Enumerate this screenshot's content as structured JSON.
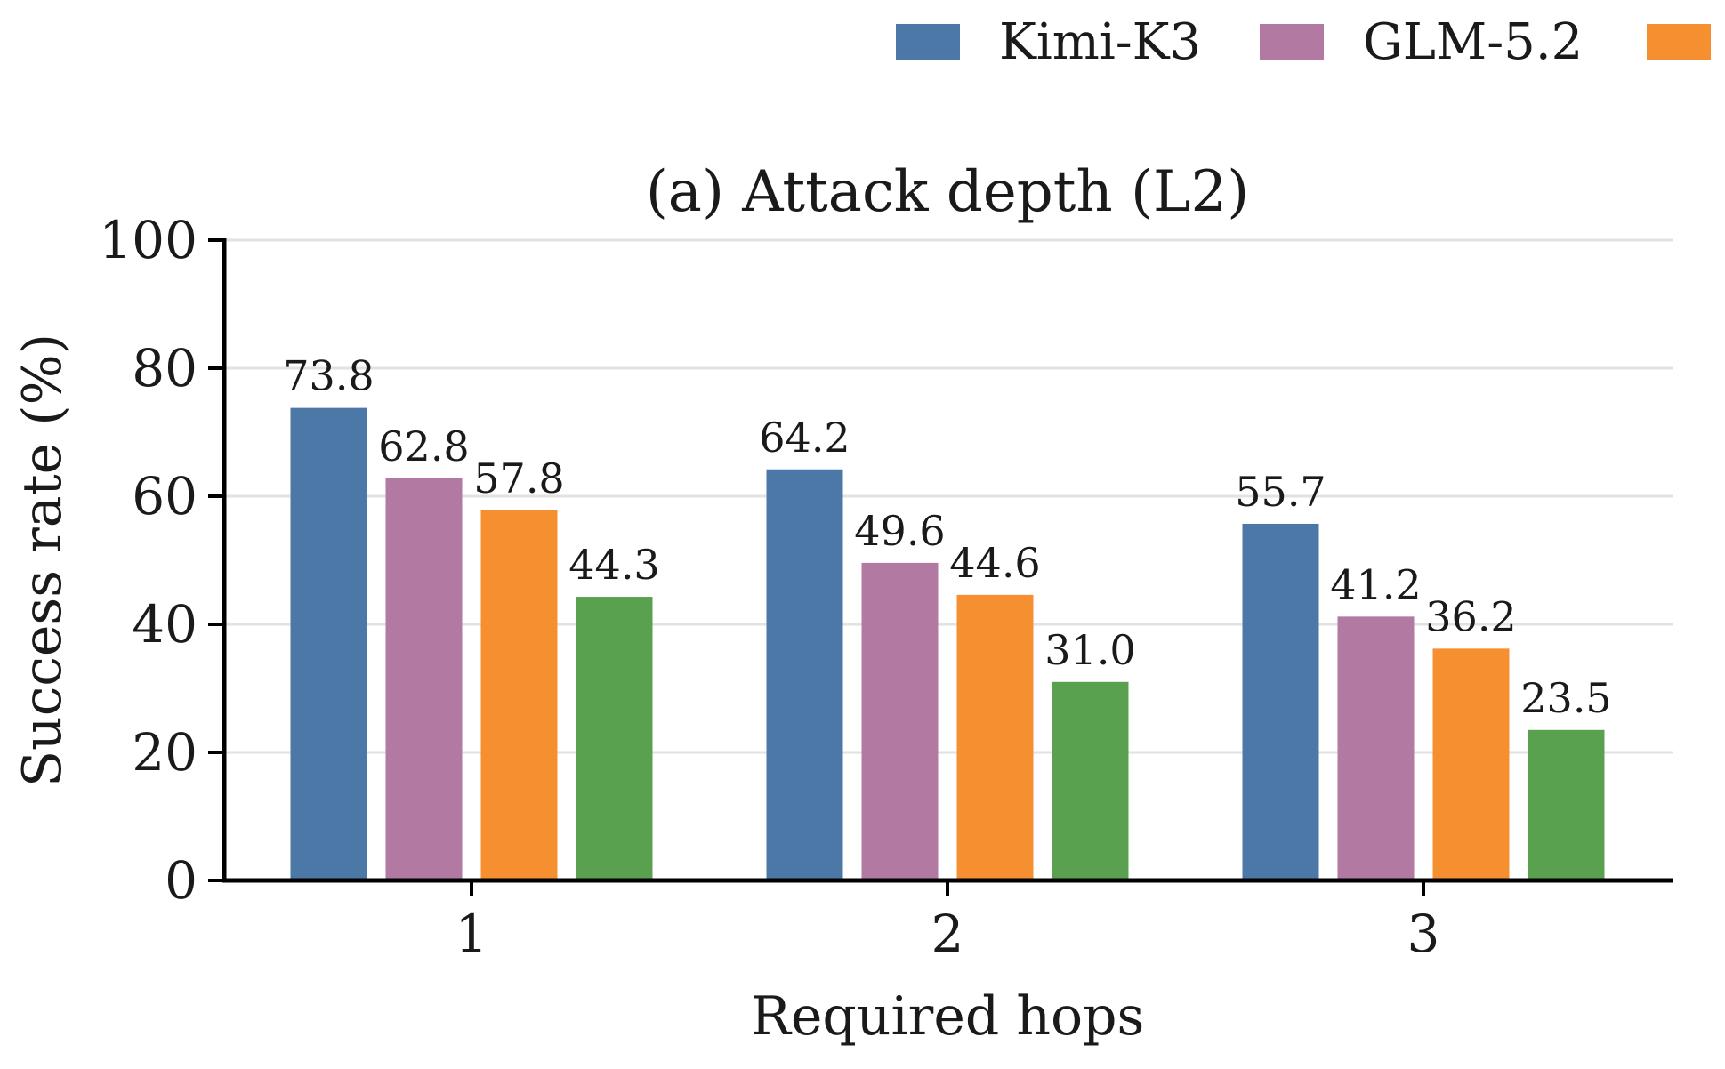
{
  "chart_data": {
    "type": "bar",
    "title": "(a) Attack depth (L2)",
    "xlabel": "Required hops",
    "ylabel": "Success rate (%)",
    "categories": [
      "1",
      "2",
      "3"
    ],
    "ylim": [
      0,
      100
    ],
    "yticks": [
      "0",
      "20",
      "40",
      "60",
      "80",
      "100"
    ],
    "grid": "horizontal",
    "legend_position": "top-right (clipped)",
    "series": [
      {
        "name": "Kimi-K3",
        "color": "#4c78a8",
        "values": [
          73.8,
          64.2,
          55.7
        ],
        "labels": [
          "73.8",
          "64.2",
          "55.7"
        ]
      },
      {
        "name": "GLM-5.2",
        "color": "#b279a2",
        "values": [
          62.8,
          49.6,
          41.2
        ],
        "labels": [
          "62.8",
          "49.6",
          "41.2"
        ]
      },
      {
        "name": "",
        "color": "#f58f2f",
        "values": [
          57.8,
          44.6,
          36.2
        ],
        "labels": [
          "57.8",
          "44.6",
          "36.2"
        ]
      },
      {
        "name": "",
        "color": "#59a14f",
        "values": [
          44.3,
          31.0,
          23.5
        ],
        "labels": [
          "44.3",
          "31.0",
          "23.5"
        ]
      }
    ]
  }
}
